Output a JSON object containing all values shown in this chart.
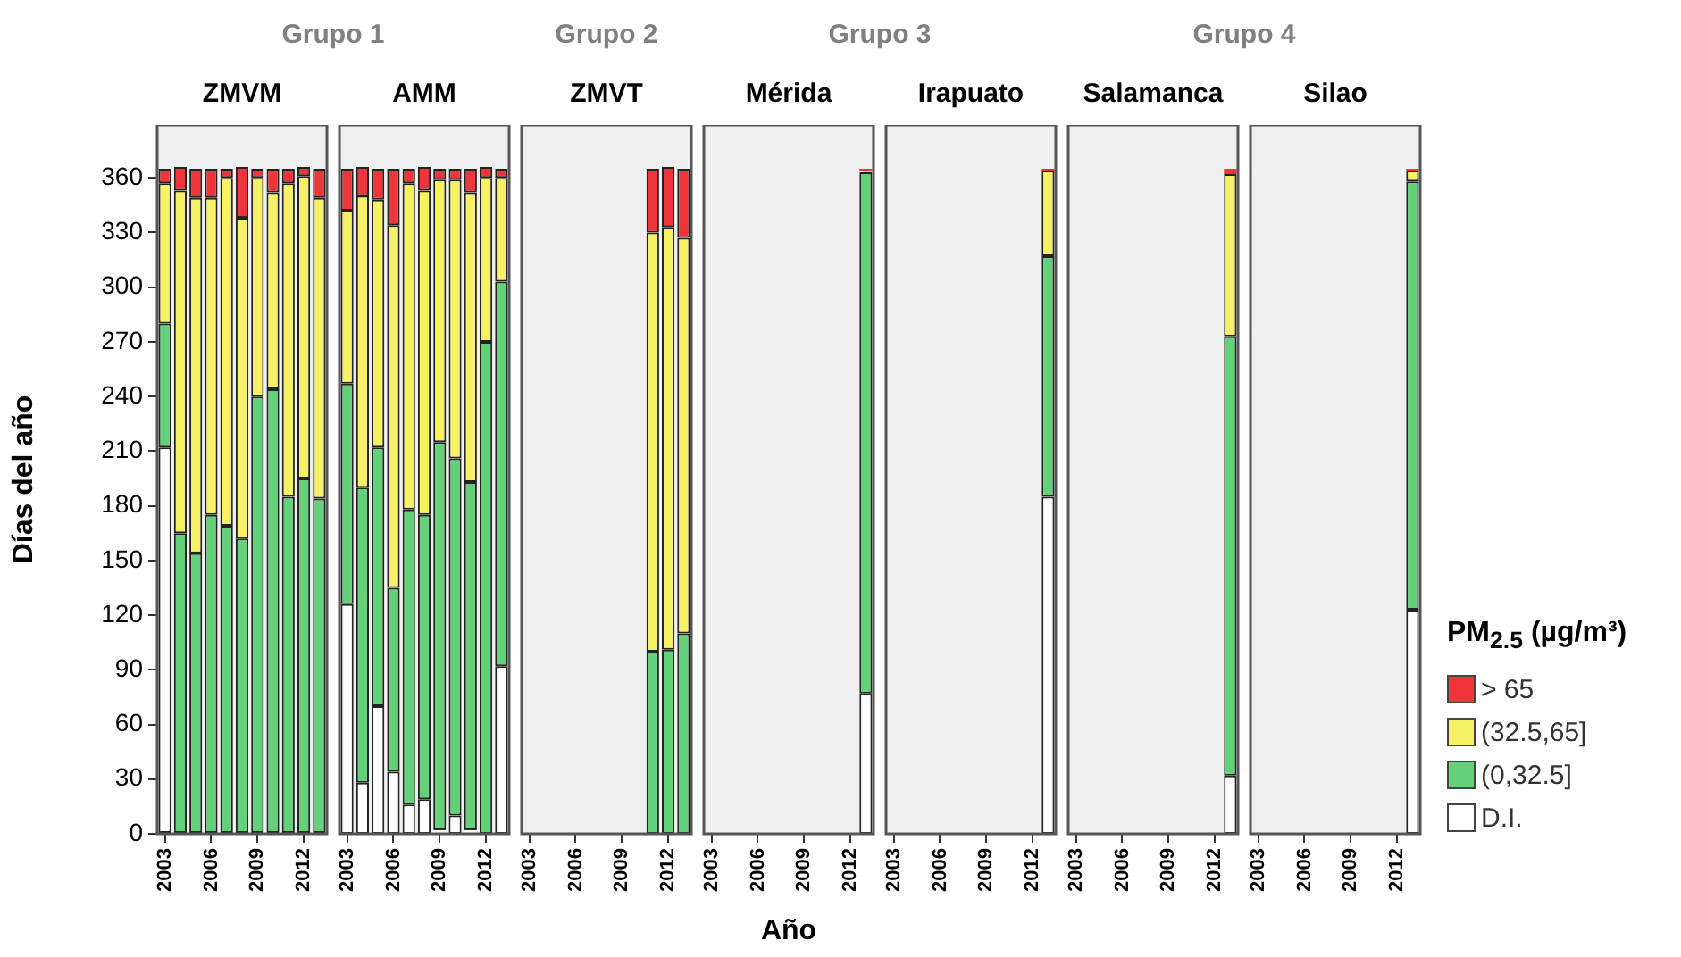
{
  "chart_data": [
    {
      "type": "bar",
      "title": "ZMVM",
      "subtitle": "Grupo 1",
      "ylabel": "Días del año",
      "stacked": true,
      "ylim": [
        0,
        389
      ],
      "yticks": [
        0,
        30,
        60,
        90,
        120,
        150,
        180,
        210,
        240,
        270,
        300,
        330,
        360
      ],
      "categories": [
        "2003",
        null,
        null,
        "2006",
        null,
        null,
        "2009",
        null,
        null,
        "2012",
        null
      ],
      "series": [
        {
          "color": "#ffffff",
          "values": [
            212,
            0,
            0,
            0,
            0,
            0,
            0,
            0,
            0,
            0,
            0
          ]
        },
        {
          "color": "#63d17a",
          "values": [
            68,
            165,
            154,
            175,
            169,
            162,
            240,
            244,
            185,
            195,
            184
          ]
        },
        {
          "color": "#f5f064",
          "values": [
            77,
            188,
            195,
            174,
            191,
            176,
            120,
            108,
            172,
            166,
            165
          ]
        },
        {
          "color": "#f0353a",
          "values": [
            8,
            13,
            16,
            16,
            5,
            28,
            5,
            13,
            8,
            5,
            16
          ]
        }
      ]
    },
    {
      "type": "bar",
      "title": "AMM",
      "stacked": true,
      "tick_labels": "x",
      "ylim": [
        0,
        389
      ],
      "yticks": [
        0,
        30,
        60,
        90,
        120,
        150,
        180,
        210,
        240,
        270,
        300,
        330,
        360
      ],
      "categories": [
        "2003",
        null,
        null,
        "2006",
        null,
        null,
        "2009",
        null,
        null,
        "2012",
        null
      ],
      "series": [
        {
          "color": "#ffffff",
          "values": [
            126,
            28,
            70,
            34,
            16,
            19,
            2,
            10,
            2,
            0,
            92
          ]
        },
        {
          "color": "#63d17a",
          "values": [
            121,
            162,
            142,
            101,
            162,
            156,
            213,
            196,
            191,
            270,
            211
          ]
        },
        {
          "color": "#f5f064",
          "values": [
            95,
            160,
            136,
            199,
            179,
            178,
            144,
            153,
            159,
            90,
            57
          ]
        },
        {
          "color": "#f0353a",
          "values": [
            23,
            16,
            17,
            31,
            8,
            13,
            6,
            6,
            13,
            6,
            5
          ]
        }
      ]
    },
    {
      "type": "bar",
      "title": "ZMVT",
      "subtitle": "Grupo 2",
      "stacked": true,
      "tick_labels": "x",
      "ylim": [
        0,
        389
      ],
      "yticks": [
        0,
        30,
        60,
        90,
        120,
        150,
        180,
        210,
        240,
        270,
        300,
        330,
        360
      ],
      "categories": [
        "2003",
        null,
        null,
        "2006",
        null,
        null,
        "2009",
        null,
        null,
        "2012",
        null
      ],
      "series": [
        {
          "color": "#ffffff",
          "values": [
            null,
            null,
            null,
            null,
            null,
            null,
            null,
            null,
            0,
            0,
            0
          ]
        },
        {
          "color": "#63d17a",
          "values": [
            null,
            null,
            null,
            null,
            null,
            null,
            null,
            null,
            100,
            101,
            110
          ]
        },
        {
          "color": "#f5f064",
          "values": [
            null,
            null,
            null,
            null,
            null,
            null,
            null,
            null,
            230,
            232,
            217
          ]
        },
        {
          "color": "#f0353a",
          "values": [
            null,
            null,
            null,
            null,
            null,
            null,
            null,
            null,
            35,
            33,
            38
          ]
        }
      ]
    },
    {
      "type": "bar",
      "title": "Mérida",
      "subtitle": "Grupo 3",
      "xlabel": "Año",
      "stacked": true,
      "tick_labels": "x",
      "ylim": [
        0,
        389
      ],
      "yticks": [
        0,
        30,
        60,
        90,
        120,
        150,
        180,
        210,
        240,
        270,
        300,
        330,
        360
      ],
      "categories": [
        "2003",
        null,
        null,
        "2006",
        null,
        null,
        "2009",
        null,
        null,
        "2012",
        null
      ],
      "series": [
        {
          "color": "#ffffff",
          "values": [
            null,
            null,
            null,
            null,
            null,
            null,
            null,
            null,
            null,
            null,
            77
          ]
        },
        {
          "color": "#63d17a",
          "values": [
            null,
            null,
            null,
            null,
            null,
            null,
            null,
            null,
            null,
            null,
            286
          ]
        },
        {
          "color": "#f5f064",
          "values": [
            null,
            null,
            null,
            null,
            null,
            null,
            null,
            null,
            null,
            null,
            1
          ]
        },
        {
          "color": "#f0353a",
          "values": [
            null,
            null,
            null,
            null,
            null,
            null,
            null,
            null,
            null,
            null,
            1
          ]
        }
      ]
    },
    {
      "type": "bar",
      "title": "Irapuato",
      "stacked": true,
      "tick_labels": "x",
      "ylim": [
        0,
        389
      ],
      "yticks": [
        0,
        30,
        60,
        90,
        120,
        150,
        180,
        210,
        240,
        270,
        300,
        330,
        360
      ],
      "categories": [
        "2003",
        null,
        null,
        "2006",
        null,
        null,
        "2009",
        null,
        null,
        "2012",
        null
      ],
      "series": [
        {
          "color": "#ffffff",
          "values": [
            null,
            null,
            null,
            null,
            null,
            null,
            null,
            null,
            null,
            null,
            185
          ]
        },
        {
          "color": "#63d17a",
          "values": [
            null,
            null,
            null,
            null,
            null,
            null,
            null,
            null,
            null,
            null,
            132
          ]
        },
        {
          "color": "#f5f064",
          "values": [
            null,
            null,
            null,
            null,
            null,
            null,
            null,
            null,
            null,
            null,
            47
          ]
        },
        {
          "color": "#f0353a",
          "values": [
            null,
            null,
            null,
            null,
            null,
            null,
            null,
            null,
            null,
            null,
            1
          ]
        }
      ]
    },
    {
      "type": "bar",
      "title": "Salamanca",
      "subtitle": "Grupo 4",
      "stacked": true,
      "tick_labels": "x",
      "ylim": [
        0,
        389
      ],
      "yticks": [
        0,
        30,
        60,
        90,
        120,
        150,
        180,
        210,
        240,
        270,
        300,
        330,
        360
      ],
      "categories": [
        "2003",
        null,
        null,
        "2006",
        null,
        null,
        "2009",
        null,
        null,
        "2012",
        null
      ],
      "series": [
        {
          "color": "#ffffff",
          "values": [
            null,
            null,
            null,
            null,
            null,
            null,
            null,
            null,
            null,
            null,
            32
          ]
        },
        {
          "color": "#63d17a",
          "values": [
            null,
            null,
            null,
            null,
            null,
            null,
            null,
            null,
            null,
            null,
            241
          ]
        },
        {
          "color": "#f5f064",
          "values": [
            null,
            null,
            null,
            null,
            null,
            null,
            null,
            null,
            null,
            null,
            89
          ]
        },
        {
          "color": "#f0353a",
          "values": [
            null,
            null,
            null,
            null,
            null,
            null,
            null,
            null,
            null,
            null,
            3
          ]
        }
      ]
    },
    {
      "type": "bar",
      "title": "Silao",
      "stacked": true,
      "tick_labels": "x",
      "ylim": [
        0,
        389
      ],
      "yticks": [
        0,
        30,
        60,
        90,
        120,
        150,
        180,
        210,
        240,
        270,
        300,
        330,
        360
      ],
      "legend": "right",
      "legend_title": "PM$_{2.5}$ (µg/m³)",
      "categories": [
        "2003",
        null,
        null,
        "2006",
        null,
        null,
        "2009",
        null,
        null,
        "2012",
        null
      ],
      "series": [
        {
          "name": "D.I.",
          "color": "#ffffff",
          "values": [
            null,
            null,
            null,
            null,
            null,
            null,
            null,
            null,
            null,
            null,
            123
          ]
        },
        {
          "name": "(0,32.5]",
          "color": "#63d17a",
          "values": [
            null,
            null,
            null,
            null,
            null,
            null,
            null,
            null,
            null,
            null,
            235
          ]
        },
        {
          "name": "(32.5,65]",
          "color": "#f5f064",
          "values": [
            null,
            null,
            null,
            null,
            null,
            null,
            null,
            null,
            null,
            null,
            6
          ]
        },
        {
          "name": "> 65",
          "color": "#f0353a",
          "values": [
            null,
            null,
            null,
            null,
            null,
            null,
            null,
            null,
            null,
            null,
            1
          ]
        }
      ]
    }
  ]
}
